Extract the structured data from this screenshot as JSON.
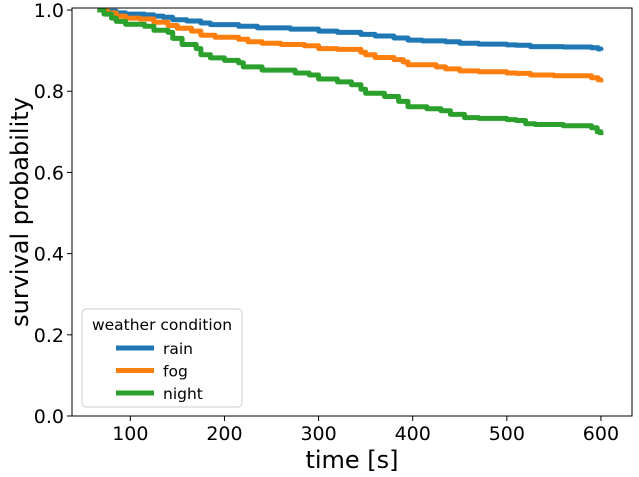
{
  "chart_data": {
    "type": "line",
    "title": "",
    "xlabel": "time [s]",
    "ylabel": "survival probability",
    "xlim": [
      38,
      633
    ],
    "ylim": [
      0.0,
      1.005
    ],
    "xticks": [
      100,
      200,
      300,
      400,
      500,
      600
    ],
    "yticks": [
      0.0,
      0.2,
      0.4,
      0.6,
      0.8,
      1.0
    ],
    "xtick_labels": [
      "100",
      "200",
      "300",
      "400",
      "500",
      "600"
    ],
    "ytick_labels": [
      "0.0",
      "0.2",
      "0.4",
      "0.6",
      "0.8",
      "1.0"
    ],
    "grid": false,
    "legend": {
      "title": "weather condition",
      "location": "lower-left"
    },
    "series": [
      {
        "name": "rain",
        "color": "#1f77b4",
        "points": [
          [
            65,
            1.0
          ],
          [
            75,
            0.997
          ],
          [
            85,
            0.993
          ],
          [
            95,
            0.99
          ],
          [
            115,
            0.988
          ],
          [
            125,
            0.985
          ],
          [
            135,
            0.982
          ],
          [
            145,
            0.976
          ],
          [
            160,
            0.973
          ],
          [
            175,
            0.968
          ],
          [
            185,
            0.964
          ],
          [
            215,
            0.96
          ],
          [
            235,
            0.956
          ],
          [
            270,
            0.953
          ],
          [
            300,
            0.948
          ],
          [
            320,
            0.945
          ],
          [
            345,
            0.94
          ],
          [
            360,
            0.936
          ],
          [
            380,
            0.931
          ],
          [
            395,
            0.926
          ],
          [
            410,
            0.924
          ],
          [
            435,
            0.922
          ],
          [
            450,
            0.918
          ],
          [
            470,
            0.916
          ],
          [
            500,
            0.914
          ],
          [
            510,
            0.913
          ],
          [
            525,
            0.91
          ],
          [
            560,
            0.909
          ],
          [
            590,
            0.907
          ],
          [
            597,
            0.904
          ],
          [
            600,
            0.9
          ]
        ]
      },
      {
        "name": "fog",
        "color": "#ff7f0e",
        "points": [
          [
            65,
            1.0
          ],
          [
            75,
            0.993
          ],
          [
            85,
            0.985
          ],
          [
            95,
            0.98
          ],
          [
            110,
            0.978
          ],
          [
            125,
            0.97
          ],
          [
            140,
            0.962
          ],
          [
            150,
            0.955
          ],
          [
            165,
            0.948
          ],
          [
            175,
            0.938
          ],
          [
            190,
            0.933
          ],
          [
            215,
            0.928
          ],
          [
            225,
            0.922
          ],
          [
            240,
            0.918
          ],
          [
            260,
            0.915
          ],
          [
            285,
            0.912
          ],
          [
            300,
            0.905
          ],
          [
            320,
            0.903
          ],
          [
            345,
            0.896
          ],
          [
            350,
            0.89
          ],
          [
            360,
            0.883
          ],
          [
            380,
            0.878
          ],
          [
            390,
            0.872
          ],
          [
            395,
            0.865
          ],
          [
            425,
            0.86
          ],
          [
            435,
            0.855
          ],
          [
            450,
            0.85
          ],
          [
            470,
            0.848
          ],
          [
            500,
            0.845
          ],
          [
            510,
            0.844
          ],
          [
            525,
            0.84
          ],
          [
            550,
            0.838
          ],
          [
            590,
            0.833
          ],
          [
            597,
            0.828
          ],
          [
            600,
            0.822
          ]
        ]
      },
      {
        "name": "night",
        "color": "#2ca02c",
        "points": [
          [
            65,
            1.0
          ],
          [
            72,
            0.99
          ],
          [
            80,
            0.98
          ],
          [
            85,
            0.972
          ],
          [
            95,
            0.965
          ],
          [
            115,
            0.96
          ],
          [
            125,
            0.95
          ],
          [
            140,
            0.945
          ],
          [
            145,
            0.93
          ],
          [
            155,
            0.915
          ],
          [
            170,
            0.905
          ],
          [
            175,
            0.89
          ],
          [
            185,
            0.882
          ],
          [
            200,
            0.876
          ],
          [
            215,
            0.87
          ],
          [
            220,
            0.86
          ],
          [
            240,
            0.852
          ],
          [
            275,
            0.845
          ],
          [
            290,
            0.84
          ],
          [
            300,
            0.83
          ],
          [
            320,
            0.823
          ],
          [
            335,
            0.816
          ],
          [
            345,
            0.805
          ],
          [
            350,
            0.795
          ],
          [
            370,
            0.787
          ],
          [
            385,
            0.775
          ],
          [
            395,
            0.762
          ],
          [
            415,
            0.757
          ],
          [
            430,
            0.752
          ],
          [
            440,
            0.743
          ],
          [
            455,
            0.735
          ],
          [
            470,
            0.733
          ],
          [
            500,
            0.73
          ],
          [
            510,
            0.728
          ],
          [
            520,
            0.72
          ],
          [
            530,
            0.718
          ],
          [
            560,
            0.715
          ],
          [
            590,
            0.71
          ],
          [
            596,
            0.7
          ],
          [
            600,
            0.692
          ]
        ]
      }
    ]
  }
}
